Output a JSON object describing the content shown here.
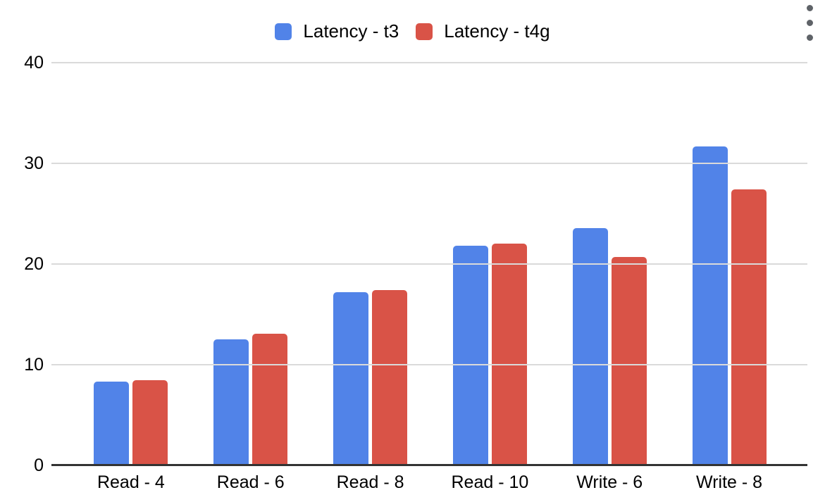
{
  "chart_data": {
    "type": "bar",
    "categories": [
      "Read - 4",
      "Read - 6",
      "Read - 8",
      "Read - 10",
      "Write - 6",
      "Write - 8"
    ],
    "series": [
      {
        "name": "Latency - t3",
        "color": "#5183e8",
        "values": [
          8.3,
          12.5,
          17.2,
          21.8,
          23.6,
          31.7
        ]
      },
      {
        "name": "Latency - t4g",
        "color": "#d95347",
        "values": [
          8.5,
          13.1,
          17.4,
          22.0,
          20.7,
          27.4
        ]
      }
    ],
    "title": "",
    "xlabel": "",
    "ylabel": "",
    "ylim": [
      0,
      40
    ],
    "yticks": [
      0,
      10,
      20,
      30,
      40
    ],
    "grid": true,
    "legend_position": "top"
  },
  "icons": {
    "options_menu": "vertical-ellipsis"
  },
  "colors": {
    "background": "#ffffff",
    "grid": "#dadada",
    "axis": "#333333",
    "text": "#000000",
    "menu_icon": "#5f6368"
  }
}
